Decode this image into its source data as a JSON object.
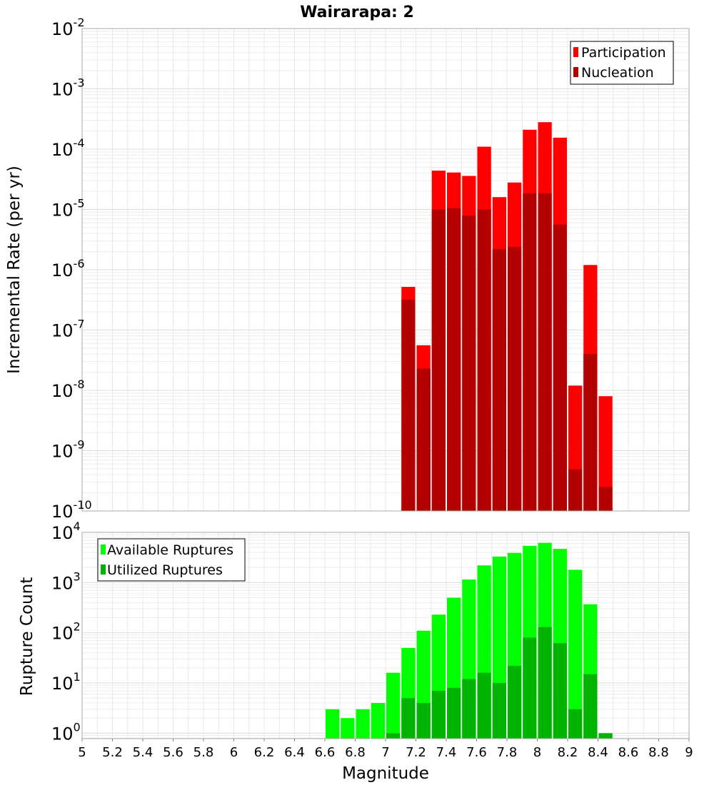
{
  "title": "Wairarapa: 2",
  "chart_data": [
    {
      "type": "bar",
      "panel": "top",
      "ylabel": "Incremental Rate (per yr)",
      "yscale": "log",
      "ylim": [
        1e-10,
        0.01
      ],
      "xlim": [
        5,
        9
      ],
      "bin_width": 0.1,
      "legend_placement": "top-right",
      "grid": true,
      "ytick_exponents": [
        "-10",
        "-9",
        "-8",
        "-7",
        "-6",
        "-5",
        "-4",
        "-3",
        "-2"
      ],
      "series": [
        {
          "name": "Participation",
          "color": "#ff0000",
          "points": [
            [
              7.15,
              5.2e-07
            ],
            [
              7.25,
              5.6e-08
            ],
            [
              7.35,
              4.4e-05
            ],
            [
              7.45,
              4.1e-05
            ],
            [
              7.55,
              3.6e-05
            ],
            [
              7.65,
              0.00011
            ],
            [
              7.75,
              1.6e-05
            ],
            [
              7.85,
              2.8e-05
            ],
            [
              7.95,
              0.00021
            ],
            [
              8.05,
              0.00028
            ],
            [
              8.15,
              0.000155
            ],
            [
              8.25,
              1.2e-08
            ],
            [
              8.35,
              1.2e-06
            ],
            [
              8.45,
              8e-09
            ]
          ]
        },
        {
          "name": "Nucleation",
          "color": "#b30000",
          "points": [
            [
              7.15,
              3.2e-07
            ],
            [
              7.25,
              2.3e-08
            ],
            [
              7.35,
              1e-05
            ],
            [
              7.45,
              1.05e-05
            ],
            [
              7.55,
              7.9e-06
            ],
            [
              7.65,
              1e-05
            ],
            [
              7.75,
              2.2e-06
            ],
            [
              7.85,
              2.4e-06
            ],
            [
              7.95,
              1.85e-05
            ],
            [
              8.05,
              1.85e-05
            ],
            [
              8.15,
              5.6e-06
            ],
            [
              8.25,
              4.9e-10
            ],
            [
              8.35,
              4e-08
            ],
            [
              8.45,
              2.5e-10
            ]
          ]
        }
      ]
    },
    {
      "type": "bar",
      "panel": "bottom",
      "xlabel": "Magnitude",
      "ylabel": "Rupture Count",
      "yscale": "log",
      "ylim": [
        0.78,
        10000
      ],
      "xlim": [
        5,
        9
      ],
      "bin_width": 0.1,
      "legend_placement": "top-left",
      "grid": true,
      "xticks": [
        "5",
        "5.2",
        "5.4",
        "5.6",
        "5.8",
        "6",
        "6.2",
        "6.4",
        "6.6",
        "6.8",
        "7",
        "7.2",
        "7.4",
        "7.6",
        "7.8",
        "8",
        "8.2",
        "8.4",
        "8.6",
        "8.8",
        "9"
      ],
      "ytick_exponents": [
        "0",
        "1",
        "2",
        "3",
        "4"
      ],
      "series": [
        {
          "name": "Available Ruptures",
          "color": "#00ff00",
          "points": [
            [
              6.65,
              3
            ],
            [
              6.75,
              2
            ],
            [
              6.85,
              3
            ],
            [
              6.95,
              4
            ],
            [
              7.05,
              16
            ],
            [
              7.15,
              50
            ],
            [
              7.25,
              110
            ],
            [
              7.35,
              230
            ],
            [
              7.45,
              500
            ],
            [
              7.55,
              1150
            ],
            [
              7.65,
              2200
            ],
            [
              7.75,
              3300
            ],
            [
              7.85,
              3900
            ],
            [
              7.95,
              5400
            ],
            [
              8.05,
              6200
            ],
            [
              8.15,
              4700
            ],
            [
              8.25,
              1800
            ],
            [
              8.35,
              370
            ]
          ]
        },
        {
          "name": "Utilized Ruptures",
          "color": "#00b300",
          "points": [
            [
              7.05,
              1
            ],
            [
              7.15,
              5
            ],
            [
              7.25,
              4
            ],
            [
              7.35,
              7
            ],
            [
              7.45,
              8
            ],
            [
              7.55,
              12
            ],
            [
              7.65,
              16
            ],
            [
              7.75,
              10
            ],
            [
              7.85,
              22
            ],
            [
              7.95,
              80
            ],
            [
              8.05,
              130
            ],
            [
              8.15,
              62
            ],
            [
              8.25,
              3
            ],
            [
              8.35,
              15
            ],
            [
              8.45,
              1
            ]
          ]
        }
      ]
    }
  ]
}
